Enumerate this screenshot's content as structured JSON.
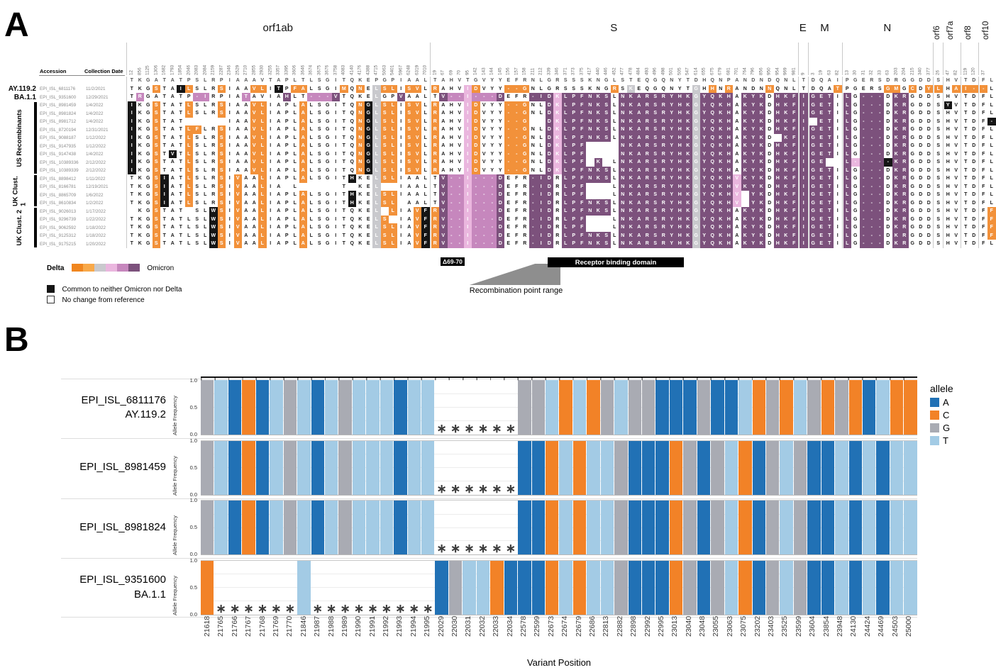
{
  "panelA": {
    "label": "A",
    "header": {
      "accession": "Accession",
      "date": "Collection Date"
    },
    "segments": [
      37,
      45,
      1,
      4,
      11,
      1,
      2,
      2,
      2
    ],
    "genes": [
      {
        "name": "orf1ab",
        "rotated": false,
        "positions": [
          12,
          856,
          1125,
          1306,
          1682,
          1793,
          1854,
          2046,
          2083,
          2084,
          2159,
          2287,
          2346,
          2529,
          2710,
          2855,
          2930,
          3255,
          3357,
          3395,
          3606,
          3646,
          3674,
          3675,
          3676,
          3758,
          4083,
          4140,
          4176,
          4388,
          4715,
          5063,
          5401,
          5967,
          6248,
          6319,
          7010
        ]
      },
      {
        "name": "S",
        "rotated": false,
        "positions": [
          19,
          67,
          69,
          70,
          95,
          142,
          143,
          144,
          145,
          156,
          157,
          158,
          211,
          212,
          339,
          346,
          371,
          373,
          375,
          417,
          440,
          446,
          452,
          477,
          478,
          484,
          493,
          496,
          498,
          501,
          505,
          547,
          614,
          655,
          675,
          679,
          681,
          701,
          764,
          796,
          856,
          950,
          954,
          969,
          981
        ]
      },
      {
        "name": "E",
        "rotated": false,
        "positions": [
          9
        ]
      },
      {
        "name": "M",
        "rotated": false,
        "positions": [
          3,
          19,
          63,
          82
        ]
      },
      {
        "name": "N",
        "rotated": false,
        "positions": [
          13,
          30,
          31,
          32,
          33,
          63,
          203,
          204,
          215,
          340,
          377
        ]
      },
      {
        "name": "orf6",
        "rotated": true,
        "positions": [
          26
        ]
      },
      {
        "name": "orf7a",
        "rotated": true,
        "positions": [
          47,
          82
        ]
      },
      {
        "name": "orf8",
        "rotated": true,
        "positions": [
          119,
          120
        ]
      },
      {
        "name": "orf10",
        "rotated": true,
        "positions": [
          37,
          ""
        ]
      }
    ],
    "groups": [
      {
        "label": "US Recombinants",
        "from": 3,
        "to": 11
      },
      {
        "label": "UK Clust. 1",
        "from": 12,
        "to": 15
      },
      {
        "label": "UK Clust. 2",
        "from": 16,
        "to": 20
      }
    ],
    "color_map": {
      "w": "#ffffff",
      "o": "#f2913a",
      "g": "#c9c9cd",
      "p": "#eab6de",
      "m": "#c687bd",
      "v": "#7c517c",
      "b": "#151515",
      "r": "#ffffff"
    },
    "legend": {
      "delta_label": "Delta",
      "omicron_label": "Omicron",
      "gradient": [
        "#f0861f",
        "#f8a94a",
        "#c9c9cd",
        "#eab6de",
        "#c687bd",
        "#7c517c"
      ],
      "neither": "Common to neither Omicron nor Delta",
      "nochange": "No change from reference"
    },
    "annotations": {
      "deletion": "Δ69-70",
      "recombination": "Recombination point range",
      "rbd": "Receptor binding domain"
    },
    "rows": [
      {
        "lineage": "",
        "accession": "",
        "date": "",
        "ref": true,
        "seq": "TKGATATPSLRPIAAAVTAPLTLSGITQKEPGPIAALTAHVTGVYYEFRNLGRSSSKNGLSTEQGQNYTDHQNPANDNDQNLTDQAIPGERSDRGGDDSHVTDFL",
        "colors": "rrrrrrrrrrrrrrrrrrrrrrrrrrrrrrrrrrrrrrrrrrrrrrrrrrrrrrrrrrrrrrrrrrrrrrrrrrrrrrrrrrrrrrrrrrrrrrrrrrrrrrrrr"
      },
      {
        "lineage": "AY.119.2",
        "accession": "EPI_ISL_6811176",
        "date": "11/2/2021",
        "ref": false,
        "seq": "TKGSTAILSLRSIAAVLITPFALSGIMQNELSLISVLRAHVIDVYY--GNLGRSSSKNGRSKEQGQNYTGHHNRANDNNQNLTDQATPGERSGMGCDYLHAI--L",
        "colors": "wwwowwbowwwowwwoowbwoowwwwowowgoowoowowwwpowwwooowwwwwwwwwwowgwwwwwwwgwowowwwwowwwwwwwowwwwwoowowoowoooow"
      },
      {
        "lineage": "BA.1.1",
        "accession": "EPI_ISL_9351600",
        "date": "12/29/2021",
        "ref": false,
        "seq": "TRGATATP-IRPIATAVIAHLT---VTQKELGPVAALTV--I---DEFR-IDKLPFNKSLNKARSRYHKGYQKHAKYKDHKFIGETILG---DKRGDDSHVTDFL",
        "colors": "wmwwwwwwmmwwwwmwwwwvwwmmmvwwwwgwwvwwwwvmmpmmmvwwwvvvpvvvvvvwvvvvvvvvvgvvvvwvvvwvvvvvvvwvwvvvwvvwwwwwwwwww"
      },
      {
        "lineage": "",
        "accession": "EPI_ISL_8981459",
        "date": "1/4/2022",
        "ref": false,
        "seq": "IKGSTATLSLRSIAAVLIAPLALSGITQNGLSLISVLRAHVIDVYY--GNLDKLPFNKSLNKARSRYHKGYQKHAKYKDHKFIGETILG---DKRGDDSYVTDFL",
        "colors": "bwwowwwowwwowwwoowwwwowwwwwwobgoowoowowwwpowwwooowwvpvvvvvvwvvvvvvvvvgvvvvwvvvwvvvvvvvwvwvvvwvvwwwwbwwwww"
      },
      {
        "lineage": "",
        "accession": "EPI_ISL_8981824",
        "date": "1/4/2022",
        "ref": false,
        "seq": "IKGSTATLSLRSIAAVLIAPLALSGITQNGLSLISVLRAHVIDVYY--GNLDKLPFNKSLNKARSRYHKGYQKHAKYKDHKFIGETILG---DKRGDDSHVTDFL",
        "colors": "bwwowwwowwwowwwoowwwwowwwwwwobgoowoowowwwpowwwooowwvpvvvvvvwvvvvvvvvvgvvvvwvvvwvvvvvvvwvwvvvwvvwwwwwwwwww"
      },
      {
        "lineage": "",
        "accession": "EPI_ISL_8981712",
        "date": "1/4/2022",
        "ref": false,
        "seq": "IKGSTAT     IAAVLIAPLALSGITQNGLSLISVLRAHVIDVYY--G  DKLPFNKSLNKARSRYHKGYQKHAKYKDHKFI ETILG---DKRGDDSHVTDF-",
        "colors": "bwwowww     wwwoowwwwowwwwwwobgoowoowowwwpowwwooo  vpvvvvvvwvvvvvvvvvgvvvvwvvvwvvvv vvwvwvvvwvvwwwwwwwwwb"
      },
      {
        "lineage": "",
        "accession": "EPI_ISL_8720194",
        "date": "12/31/2021",
        "ref": false,
        "seq": "IKGSTATLFLRSIAAVLIAPLALSGITQNGLSLISVLRAHVIDVYY--GNLDKLPFNKSLNKARSRYHKGYQKHAKYKDHKFIGETILG---DKRGDDSHVTDFL",
        "colors": "bwwowwwoowwowwwoowwwwowwwwwwobgoowoowowwwpowwwooowwvpvvvvvvwvvvvvvvvvgvvvvwvvvwvvvvvvvwvwvvvwvvwwwwwwwwww"
      },
      {
        "lineage": "",
        "accession": "EPI_ISL_9088187",
        "date": "1/12/2022",
        "ref": false,
        "seq": "IKGSTATLSLRSIAAVLIAPLALSGITQNGLSLISVLRAHVIDVYY--GNLDKLPFNKSLNKARSRYHKGYQKHAKYKD KFIGETILG---DKRGDDSHVTDFL",
        "colors": "bwwowwwowwwowwwoowwwwowwwwwwobgoowoowowwwpowwwooowwvpvvvvvvwvvvvvvvvvgvvvvwvvvw vvvvvvwvwvvvwvvwwwwwwwwww"
      },
      {
        "lineage": "",
        "accession": "EPI_ISL_9147935",
        "date": "1/12/2022",
        "ref": false,
        "seq": "IKGSTATLSLRSIAAVLIAPLALSGITQNGLSLISVLRAHVIDVYY--GNLDKLPF    NKARSRYHKGYQKHAKYKDHKFIGETILG---DKRGDDSHVTDFL",
        "colors": "bwwowwwowwwowwwoowwwwowwwwwwobgoowoowowwwpowwwooowwvpvvv    vvvvvvvvvgvvvvwvvvwvvvvvvvwvwvvvwvvwwwwwwwwww"
      },
      {
        "lineage": "",
        "accession": "EPI_ISL_9147438",
        "date": "1/4/2022",
        "ref": false,
        "seq": "IKGSTVTLSLRSIAAVLIAPLALSGITQNGLSLISVLRAHVIDVYY--GNLDKLPF    NKARSRYHKGYQKHAKYKDHKFIGETILG---DKRGDDSHVTDFL",
        "colors": "bwwowbwowwwowwwoowwwwowwwwwwobgoowoowowwwpowwwooowwvpvvv    vvvvvvvvvgvvvvwvvvwvvvvvvvwvwvvvwvvwwwwwwwwww"
      },
      {
        "lineage": "",
        "accession": "EPI_ISL_10389336",
        "date": "2/12/2022",
        "ref": false,
        "seq": "IKGSTATLSLRSIAAVLIAPLALSGITQNGLSLISVLRAHVIDVYY--GNLDKLPF K LNKARSRYHKGYQKHAKYKDHKFIGE  L-----KRGDDSHVTDFL",
        "colors": "bwwowwwowwwowwwoowwwwowwwwwwobgoowoowowwwpowwwooowwvpvvv v wvvvvvvvvvgvvvvwvvvwvvvvvv  vpvvvbvvwwwwwwwwww"
      },
      {
        "lineage": "",
        "accession": "EPI_ISL_10389339",
        "date": "2/12/2022",
        "ref": false,
        "seq": "IKGSTATLSLRSIAAVLIAPLALSGITQNGLSLISVLRAHVIDVYY--GNLDKLPFNKSLNKARSRYHKGYQKHAKYKDHKFIGETILG---DKRGDDSHVTDFL",
        "colors": "bwwowwwowwwowwwoowwwwowwwwwwobgoowoowowwwpowwwooowwvpvvvvvvwvvvvvvvvvgvvvvwvvvwvvvvvvvwvwvvvwvvwwwwwwwwww"
      },
      {
        "lineage": "",
        "accession": "EPI_ISL_8898412",
        "date": "1/11/2022",
        "ref": false,
        "seq": "TKGSIATLSLRSIVAALIAPLALSGITHKELSLIAALTV--I---DEFR-IDRLPFNKSLNKARSRYHKGYQKHVKYKDHKFIGETILG---DKRGDDSHVTDFL",
        "colors": "wwwobwwowwwowowwowwwwowwwwwbwwgoowwwwwvmmpmmmvwwwvvvwvvvvvvwvvvvvvvvvgvvvvpvvvwvvvvvvvwvwvvvwvvwwwwwwwwww"
      },
      {
        "lineage": "",
        "accession": "EPI_ISL_8166781",
        "date": "12/19/2021",
        "ref": false,
        "seq": "TKGSIATLSLRSIVAALIA L     T KEL  IAALTV--I---DEFR-IDRLPF   LNKARSRYHKGYQKHVKYKDHKFIGETILG---DKRGDDSHVTDFL",
        "colors": "wwwobwwowwwowowwoww w     w wwg  wwwwwvmmpmmmvwwwvvvwvvv   wvvvvvvvvvgvvvvpvvvwvvvvvvvwvwvvvwvvwwwwwwwwww"
      },
      {
        "lineage": "",
        "accession": "EPI_ISL_8865709",
        "date": "1/6/2022",
        "ref": false,
        "seq": "TKGSIATLSLRSIVAALIAPLALSGITHKELSLIAALTV--I---DEFR-IDRLPF   LNKARSRYHKGYQKHV YKDHKFIGETILG---DKRGDDSHVTDFL",
        "colors": "wwwobwwowwwowowwowwwwowwwwwbwwgoowwwwwvmmpmmmvwwwvvvwvvv   wvvvvvvvvvgvvvvp vvwvvvvvvvwvwvvvwvvwwwwwwwwww"
      },
      {
        "lineage": "",
        "accession": "EPI_ISL_8610834",
        "date": "1/2/2022",
        "ref": false,
        "seq": "TKGSIATLSLRSIVAALIAPLALSGITHKELSL AALTV--I---DEFR-IDRLPFNKSLNKARSRYHKGYQKHV YKDHKFIGETILG---DKRGDDSHVTDFL",
        "colors": "wwwobwwowwwowowwowwwwowwwwwbwwgoo wwwwvmmpmmmvwwwvvvwvvvvvvwvvvvvvvvvgvvvvp vvwvvvvvvvwvwvvvwvvwwwwwwwwww"
      },
      {
        "lineage": "",
        "accession": "EPI_ISL_9026013",
        "date": "1/17/2022",
        "ref": false,
        "seq": " KGSTAT SLWSIVAALIAPLALSGITQKEL LIAVFRV--I---DEFR-IDRLPFNKSLNKARSRYHKGYQKHAKYKDHKFIGETILG---DKRGDDSHVTDFF",
        "colors": " wwowww wwbowowwowwwwowwwwwwwwg owwobovmmpmmmvwwwvvvwvvvvvvwvvvvvvvvvgvvvvwvvvwvvvvvvvwvwvvvwvvwwwwwwwwwo"
      },
      {
        "lineage": "",
        "accession": "EPI_ISL_9296739",
        "date": "1/22/2022",
        "ref": false,
        "seq": "TKGSTATLSLWSIVAALIAPLALSGITQKELS IAVFRV--I---DEFR-IDRLPF   LNKARSRYHKGYQKHAKYKDHKFIGETILG---DKRGDDSHVTDFF",
        "colors": "wwwowwwwwwbowowwowwwwowwwwwwwwgo wwobovmmpmmmvwwwvvvwvvv   wvvvvvvvvvgvvvvwvvvwvvvvvvvwvwvvvwvvwwwwwwwwwo"
      },
      {
        "lineage": "",
        "accession": "EPI_ISL_9062592",
        "date": "1/18/2022",
        "ref": false,
        "seq": "TKGSTATLSLWSIVAALIAPLALSGITQKELSLIAVFRV--I---DEFR-IDRLPF   LNKARSRYHKGYQKHAKYKDHKFIGETILG---DKRGDDSHVTDFF",
        "colors": "wwwowwwwwwbowowwowwwwowwwwwwwwgoowwobovmmpmmmvwwwvvvwvvv   wvvvvvvvvvgvvvvwvvvwvvvvvvvwvwvvvwvvwwwwwwwwwo"
      },
      {
        "lineage": "",
        "accession": "EPI_ISL_9125312",
        "date": "1/18/2022",
        "ref": false,
        "seq": "TKGSTATLSLWSIVAALIAPLALSGITQKELSLIAVFRV--I---DEFR-IDRLPFNKSLNKARSRYHKGYQKHAKYKDHKFIGETILG---DKRGDDSHVTDFF",
        "colors": "wwwowwwwwwbowowwowwwwowwwwwwwwgoowwobovmmpmmmvwwwvvvwvvvvvvwvvvvvvvvvgvvvvwvvvwvvvvvvvwvwvvvwvvwwwwwwwwwo"
      },
      {
        "lineage": "",
        "accession": "EPI_ISL_9175215",
        "date": "1/20/2022",
        "ref": false,
        "seq": "TKGSTATLSLWSIVAALIAPLALSGITQKELSLIAVFRV--I---DEFR-IDRLPFNKSLNKARSRYHKGYQKHAKYKDHKFIGETILG---DKRGDDSHVTDFL",
        "colors": "wwwowwwwwwbowowwowwwwowwwwwwwwgoowwobovmmpmmmvwwwvvvwvvvvvvwvvvvvvvvvgvvvvwvvvwvvvvvvvwvwvvvwvvwwwwwwwwww"
      }
    ]
  },
  "panelB": {
    "label": "B",
    "ylabel": "Allele Frequency",
    "yticks": [
      "1.0",
      "0.5",
      "0.0"
    ],
    "legend_title": "allele",
    "missing_marker": "∗"
  },
  "chart_data": {
    "type": "bar",
    "subtype": "allele-frequency, one full-height bar per variant position (frequency 1.0), asterisk = position absent (deletion)",
    "xlabel": "Variant Position",
    "ylabel": "Allele Frequency",
    "ylim": [
      0,
      1
    ],
    "x": [
      21618,
      21765,
      21766,
      21767,
      21768,
      21769,
      21770,
      21846,
      21987,
      21988,
      21989,
      21990,
      21991,
      21992,
      21993,
      21994,
      21995,
      22029,
      22030,
      22031,
      22032,
      22033,
      22034,
      22578,
      22599,
      22673,
      22674,
      22679,
      22686,
      22813,
      22882,
      22898,
      22992,
      22995,
      23013,
      23040,
      23048,
      23055,
      23063,
      23075,
      23202,
      23403,
      23525,
      23599,
      23604,
      23854,
      23948,
      24130,
      24424,
      24469,
      24503,
      25000
    ],
    "legend": [
      {
        "label": "A",
        "color": "#2171b5"
      },
      {
        "label": "C",
        "color": "#f28227"
      },
      {
        "label": "G",
        "color": "#a9abb3"
      },
      {
        "label": "T",
        "color": "#a3cbe5"
      }
    ],
    "series": [
      {
        "name": "EPI_ISL_6811176 AY.119.2",
        "label_lines": [
          "EPI_ISL_6811176",
          "AY.119.2"
        ],
        "alleles": [
          "G",
          "T",
          "A",
          "C",
          "A",
          "T",
          "G",
          "T",
          "A",
          "T",
          "G",
          "T",
          "T",
          "T",
          "A",
          "T",
          "T",
          null,
          null,
          null,
          null,
          null,
          null,
          "G",
          "G",
          "T",
          "C",
          "T",
          "C",
          "G",
          "T",
          "G",
          "G",
          "A",
          "A",
          "A",
          "G",
          "A",
          "A",
          "T",
          "C",
          "G",
          "C",
          "T",
          "G",
          "C",
          "G",
          "C",
          "A",
          "T",
          "C",
          "C"
        ]
      },
      {
        "name": "EPI_ISL_8981459",
        "label_lines": [
          "EPI_ISL_8981459"
        ],
        "alleles": [
          "G",
          "T",
          "A",
          "C",
          "A",
          "T",
          "G",
          "T",
          "A",
          "T",
          "G",
          "T",
          "T",
          "T",
          "A",
          "T",
          "T",
          null,
          null,
          null,
          null,
          null,
          null,
          "A",
          "A",
          "C",
          "T",
          "C",
          "T",
          "T",
          "G",
          "A",
          "A",
          "A",
          "C",
          "G",
          "A",
          "G",
          "T",
          "C",
          "A",
          "G",
          "T",
          "G",
          "A",
          "A",
          "T",
          "A",
          "T",
          "A",
          "T",
          "T"
        ]
      },
      {
        "name": "EPI_ISL_8981824",
        "label_lines": [
          "EPI_ISL_8981824"
        ],
        "alleles": [
          "G",
          "T",
          "A",
          "C",
          "A",
          "T",
          "G",
          "T",
          "A",
          "T",
          "G",
          "T",
          "T",
          "T",
          "A",
          "T",
          "T",
          null,
          null,
          null,
          null,
          null,
          null,
          "A",
          "A",
          "C",
          "T",
          "C",
          "T",
          "T",
          "G",
          "A",
          "A",
          "A",
          "C",
          "G",
          "A",
          "G",
          "T",
          "C",
          "A",
          "G",
          "T",
          "G",
          "A",
          "A",
          "T",
          "A",
          "T",
          "A",
          "T",
          "T"
        ]
      },
      {
        "name": "EPI_ISL_9351600 BA.1.1",
        "label_lines": [
          "EPI_ISL_9351600",
          "BA.1.1"
        ],
        "alleles": [
          "C",
          null,
          null,
          null,
          null,
          null,
          null,
          "T",
          null,
          null,
          null,
          null,
          null,
          null,
          null,
          null,
          null,
          "A",
          "G",
          "T",
          "T",
          "C",
          "A",
          "A",
          "A",
          "C",
          "T",
          "C",
          "T",
          "T",
          "G",
          "A",
          "A",
          "A",
          "C",
          "G",
          "A",
          "G",
          "T",
          "C",
          "A",
          "G",
          "T",
          "G",
          "A",
          "A",
          "T",
          "A",
          "T",
          "A",
          "T",
          "T"
        ]
      }
    ]
  }
}
